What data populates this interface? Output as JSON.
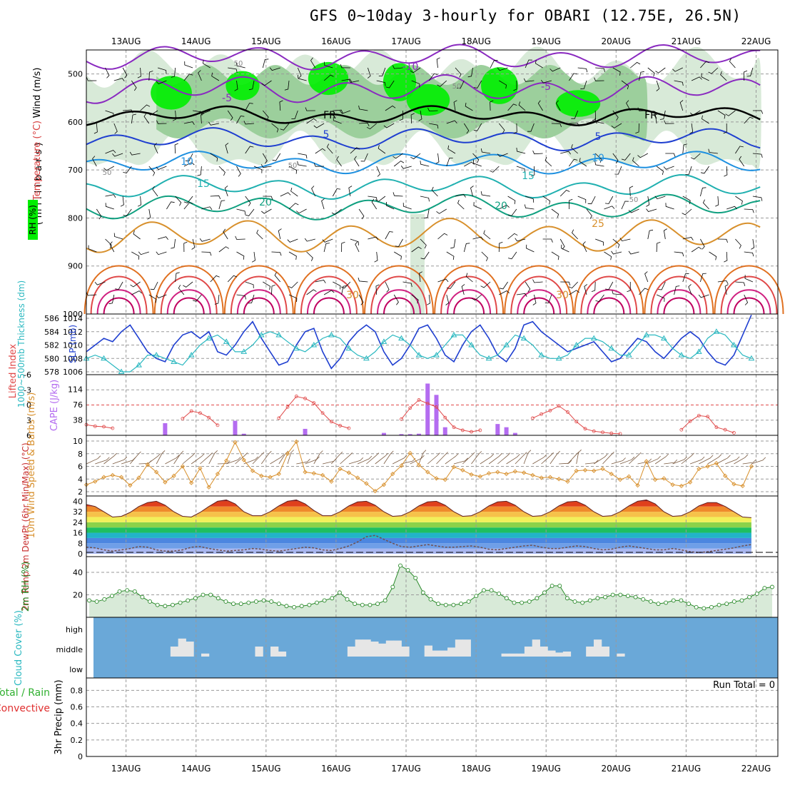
{
  "title": "GFS 0~10day 3-hourly for OBARI (12.75E, 26.5N)",
  "colors": {
    "grid": "#9a9a9a",
    "slp": "#1f3fd0",
    "thickness": "#2ab8c0",
    "lifted_index": "#e04848",
    "cape": "#b46cf0",
    "wind": "#d8902c",
    "rh": "#2a8a2a",
    "cloud_bg": "#6aa8d8",
    "cloud_bar": "#e6e6e6",
    "rh_fill_light": "#d8ead8",
    "rh_fill_mid": "#9ccf9c",
    "rh_fill_dark": "#00ee00"
  },
  "chart_data": [
    {
      "panel": "upper-air",
      "type": "contour",
      "x_dates": [
        "13AUG",
        "14AUG",
        "15AUG",
        "16AUG",
        "17AUG",
        "18AUG",
        "19AUG",
        "20AUG",
        "21AUG",
        "22AUG"
      ],
      "ylabel": "(millibars)",
      "y_ticks": [
        500,
        600,
        700,
        800,
        900,
        1000
      ],
      "ylim": [
        1000,
        450
      ],
      "legend_labels": [
        "Wind (m/s)",
        "Temperature (°C)",
        "RH (%)"
      ],
      "temperature_contours": [
        -10,
        -5,
        5,
        10,
        15,
        20,
        25,
        30
      ],
      "contour_labels": [
        "-10",
        "-5",
        "-5",
        "FR",
        "FR",
        "5",
        "5",
        "10",
        "10",
        "15",
        "15",
        "20",
        "20",
        "25",
        "30",
        "30",
        "50",
        "50",
        "50",
        "50",
        "50"
      ],
      "rh_shading": [
        50,
        70,
        90
      ]
    },
    {
      "panel": "pressure",
      "type": "line",
      "ylabel_left": "1000~500mb Thickness (dm)",
      "ylabel_right": "SLP (mb)",
      "y_ticks_left": [
        578,
        580,
        582,
        584,
        586
      ],
      "y_ticks_right": [
        1006,
        1008,
        1010,
        1012,
        1014
      ],
      "series": [
        {
          "name": "SLP",
          "axis": "right",
          "values": [
            1009,
            1010,
            1011,
            1010.5,
            1012,
            1013,
            1011,
            1009,
            1008,
            1007.5,
            1010,
            1011.5,
            1012,
            1011,
            1012,
            1009,
            1008.5,
            1010,
            1012,
            1013.5,
            1011,
            1009,
            1007,
            1007.5,
            1010,
            1012,
            1012.5,
            1009,
            1006.5,
            1008,
            1010.5,
            1012,
            1013,
            1012,
            1009,
            1007,
            1008,
            1010,
            1012.5,
            1013,
            1011,
            1008.5,
            1007.5,
            1010,
            1012,
            1013,
            1011,
            1008.5,
            1007.5,
            1009.5,
            1013,
            1013.5,
            1012,
            1011,
            1010,
            1009,
            1009.5,
            1010,
            1010.5,
            1009,
            1007.5,
            1008,
            1009.5,
            1011,
            1010.5,
            1009,
            1008,
            1009.5,
            1011,
            1012,
            1011,
            1009,
            1007.5,
            1007,
            1008.5,
            1011.5,
            1014.5
          ]
        },
        {
          "name": "Thickness",
          "axis": "left",
          "values": [
            580,
            580.5,
            580,
            579,
            578,
            578,
            579,
            580.5,
            580.5,
            580,
            579.5,
            579,
            580.5,
            582,
            583,
            583.5,
            582.5,
            581,
            581,
            582,
            583.5,
            584,
            583.5,
            582.5,
            581.5,
            581,
            582,
            583,
            583.5,
            583,
            581.5,
            580.5,
            580,
            581,
            582.5,
            583.5,
            583,
            582,
            580.5,
            580,
            580.5,
            582,
            583.5,
            583.5,
            582,
            580.5,
            580,
            580.5,
            582,
            583.5,
            583,
            582,
            580.5,
            580,
            580,
            580.5,
            582,
            583,
            583,
            582.5,
            581.5,
            580.5,
            580.5,
            582,
            583.5,
            583.5,
            583,
            581.5,
            580.5,
            580,
            581,
            583,
            584,
            583.5,
            582,
            580.5,
            580
          ]
        }
      ]
    },
    {
      "panel": "stability",
      "type": "bar+line",
      "ylabel_left": "Lifted Index",
      "ylabel_right": "CAPE (J/kg)",
      "y_ticks_left": [
        "-6",
        "-3",
        "0",
        "3",
        "6"
      ],
      "y_ticks_right": [
        "114",
        "76",
        "38"
      ],
      "series": [
        {
          "name": "Lifted Index",
          "type": "line",
          "values": [
            3.9,
            4.2,
            4.3,
            4.6,
            null,
            null,
            null,
            null,
            null,
            null,
            null,
            2.7,
            1.2,
            1.6,
            2.5,
            4.0,
            null,
            null,
            null,
            null,
            null,
            null,
            2.6,
            0.4,
            -1.7,
            -1.3,
            -0.4,
            1.6,
            3.3,
            4.1,
            4.6,
            null,
            null,
            null,
            null,
            null,
            2.8,
            0.6,
            -1.0,
            -0.3,
            0.4,
            2.5,
            4.4,
            5.0,
            5.3,
            5.0,
            null,
            null,
            null,
            null,
            null,
            2.6,
            1.8,
            1.1,
            0.2,
            1.4,
            3.3,
            4.7,
            5.2,
            5.4,
            5.6,
            5.7,
            null,
            null,
            null,
            null,
            null,
            null,
            4.9,
            3.2,
            2.1,
            2.3,
            4.4,
            4.9,
            5.5,
            null,
            null
          ]
        },
        {
          "name": "CAPE",
          "type": "bar",
          "values": [
            0,
            0,
            0,
            0,
            0,
            0,
            0,
            0,
            0,
            0,
            0,
            0,
            0,
            0,
            0,
            0,
            0,
            0,
            0,
            0,
            0,
            0,
            0,
            0,
            0,
            0,
            0,
            0,
            0,
            0,
            0,
            0,
            0,
            0,
            0,
            0,
            0,
            0,
            0,
            0,
            0,
            0,
            0,
            0,
            0,
            0,
            0,
            0,
            0,
            0,
            0,
            0,
            0,
            0,
            0,
            0,
            0,
            0,
            0,
            0,
            0,
            0,
            0,
            0,
            0,
            0,
            0,
            0,
            0,
            0,
            0,
            0,
            0,
            0,
            0,
            0,
            0
          ]
        }
      ]
    },
    {
      "panel": "wind10m",
      "type": "line",
      "ylabel": "10m Wind Speed & Barbs (m/s)",
      "y_ticks": [
        "2",
        "4",
        "6",
        "8",
        "10"
      ],
      "values": [
        3.1,
        3.6,
        4.3,
        4.6,
        4.3,
        3.0,
        4.2,
        6.3,
        5.1,
        3.5,
        4.5,
        6.0,
        3.4,
        5.7,
        2.7,
        4.8,
        6.9,
        9.8,
        7.0,
        5.3,
        4.5,
        4.3,
        4.8,
        8.0,
        9.9,
        5.1,
        4.9,
        4.6,
        3.6,
        5.6,
        5.0,
        4.2,
        3.3,
        2.1,
        3.1,
        4.8,
        6.1,
        8.1,
        6.2,
        5.1,
        4.1,
        3.9,
        5.9,
        5.4,
        4.7,
        4.4,
        4.9,
        5.1,
        4.8,
        5.2,
        5.0,
        4.6,
        4.2,
        4.3,
        4.0,
        3.6,
        5.3,
        5.4,
        5.3,
        5.6,
        4.8,
        3.9,
        4.4,
        3.0,
        6.8,
        3.9,
        4.1,
        3.1,
        2.9,
        3.5,
        5.6,
        6.0,
        6.5,
        4.5,
        3.2,
        2.9,
        6.0
      ]
    },
    {
      "panel": "temperature",
      "type": "area",
      "ylabel": "2m Temp 2m DewPt (6hr Min/Max) (°C)",
      "y_ticks": [
        "0",
        "8",
        "16",
        "24",
        "32",
        "40"
      ],
      "series": [
        {
          "name": "2m Temp",
          "values": [
            37.5,
            36,
            32,
            28,
            28.5,
            31.5,
            36,
            39,
            40,
            37,
            32,
            28.5,
            28,
            31.5,
            36,
            40,
            41,
            38,
            32,
            29,
            29,
            32,
            36.5,
            40,
            41,
            38,
            33,
            29,
            29,
            32,
            36.5,
            39.5,
            40,
            37,
            32,
            28.5,
            29,
            32,
            36.5,
            39.5,
            40,
            37,
            32,
            28.5,
            29,
            32,
            36.5,
            39.5,
            40,
            37,
            32,
            28.5,
            29,
            32,
            36.5,
            39.5,
            40,
            37,
            32,
            28.5,
            29,
            32,
            36.5,
            40,
            41,
            38,
            32,
            28.5,
            29,
            32,
            36.5,
            39,
            39,
            36,
            32,
            28,
            27.5
          ]
        },
        {
          "name": "2m DewPt",
          "values": [
            5,
            4.5,
            3,
            2,
            3,
            4,
            5.5,
            5,
            3,
            2,
            2,
            3,
            5,
            5.5,
            4,
            3,
            2,
            2.5,
            3,
            4,
            3.5,
            2.5,
            2,
            3,
            4,
            5,
            4.5,
            3,
            2.5,
            4,
            6,
            9,
            13,
            14,
            11,
            8,
            5.5,
            5,
            6,
            7,
            6,
            5,
            5,
            5.5,
            6,
            5,
            3.5,
            3,
            4,
            5,
            6,
            6.5,
            5,
            4,
            4,
            5,
            6,
            5.5,
            4,
            3,
            3.5,
            5,
            6,
            5,
            4,
            3,
            3,
            4,
            3,
            1.5,
            1,
            1.5,
            2.5,
            3.5,
            4.5,
            6,
            7
          ]
        }
      ]
    },
    {
      "panel": "humidity",
      "type": "area",
      "ylabel": "2m RH (%)",
      "y_ticks": [
        "20",
        "40"
      ],
      "values": [
        15,
        14,
        16,
        19,
        23,
        24,
        23,
        18,
        14,
        11,
        10,
        11,
        13,
        15,
        17,
        20,
        20,
        17,
        14,
        12,
        12,
        13,
        14,
        15,
        14,
        12,
        10,
        9,
        10,
        11,
        13,
        15,
        17,
        22,
        16,
        12,
        11,
        11,
        12,
        15,
        27,
        46,
        42,
        35,
        22,
        16,
        12,
        11,
        11,
        12,
        14,
        19,
        24,
        24,
        21,
        17,
        13,
        13,
        14,
        17,
        22,
        28,
        28,
        17,
        14,
        13,
        15,
        17,
        18,
        20,
        20,
        19,
        18,
        16,
        14,
        12,
        13,
        15,
        15,
        12,
        9,
        8,
        9,
        11,
        12,
        14,
        15,
        18,
        21,
        26,
        27
      ]
    },
    {
      "panel": "cloud",
      "type": "bar",
      "ylabel": "Cloud Cover (%)",
      "y_ticks": [
        "high",
        "middle",
        "low"
      ],
      "values": [
        0,
        0,
        0,
        0,
        0,
        0,
        0,
        0,
        0,
        0,
        1,
        1.8,
        1.5,
        0,
        0.3,
        0,
        0,
        0,
        0,
        0,
        0,
        1,
        0,
        1,
        0.5,
        0,
        0,
        0,
        0,
        0,
        0,
        0,
        0,
        1,
        1.7,
        1.7,
        1.5,
        1.3,
        1.6,
        1.6,
        1.0,
        0,
        0,
        1.1,
        0.6,
        0.6,
        0.9,
        1.7,
        1.7,
        0,
        0,
        0,
        0,
        0.3,
        0.3,
        0.3,
        1.0,
        1.7,
        1.0,
        0.6,
        0.4,
        0.5,
        0,
        0,
        1.0,
        1.7,
        1.0,
        0,
        0.3,
        0,
        0,
        0,
        0,
        0,
        0,
        0,
        0,
        0,
        0,
        0,
        0,
        0,
        0,
        0,
        0,
        0,
        0,
        0
      ]
    },
    {
      "panel": "precip",
      "type": "bar",
      "ylabel_left": "Total / Rain",
      "ylabel_left2": "Convective",
      "ylabel_right": "3hr Precip (mm)",
      "y_ticks": [
        "0",
        "0.2",
        "0.4",
        "0.6",
        "0.8"
      ],
      "ylim": [
        0,
        0.95
      ],
      "run_total_label": "Run Total = 0",
      "values": [
        0,
        0,
        0,
        0,
        0,
        0,
        0,
        0,
        0,
        0,
        0,
        0,
        0,
        0,
        0,
        0,
        0,
        0,
        0,
        0,
        0,
        0,
        0,
        0,
        0,
        0,
        0,
        0,
        0,
        0,
        0,
        0,
        0,
        0,
        0,
        0,
        0,
        0,
        0,
        0,
        0,
        0,
        0,
        0,
        0,
        0,
        0,
        0,
        0,
        0,
        0,
        0,
        0,
        0,
        0,
        0,
        0,
        0,
        0,
        0,
        0,
        0,
        0,
        0,
        0,
        0,
        0,
        0,
        0,
        0,
        0,
        0,
        0,
        0,
        0,
        0,
        0
      ]
    }
  ]
}
